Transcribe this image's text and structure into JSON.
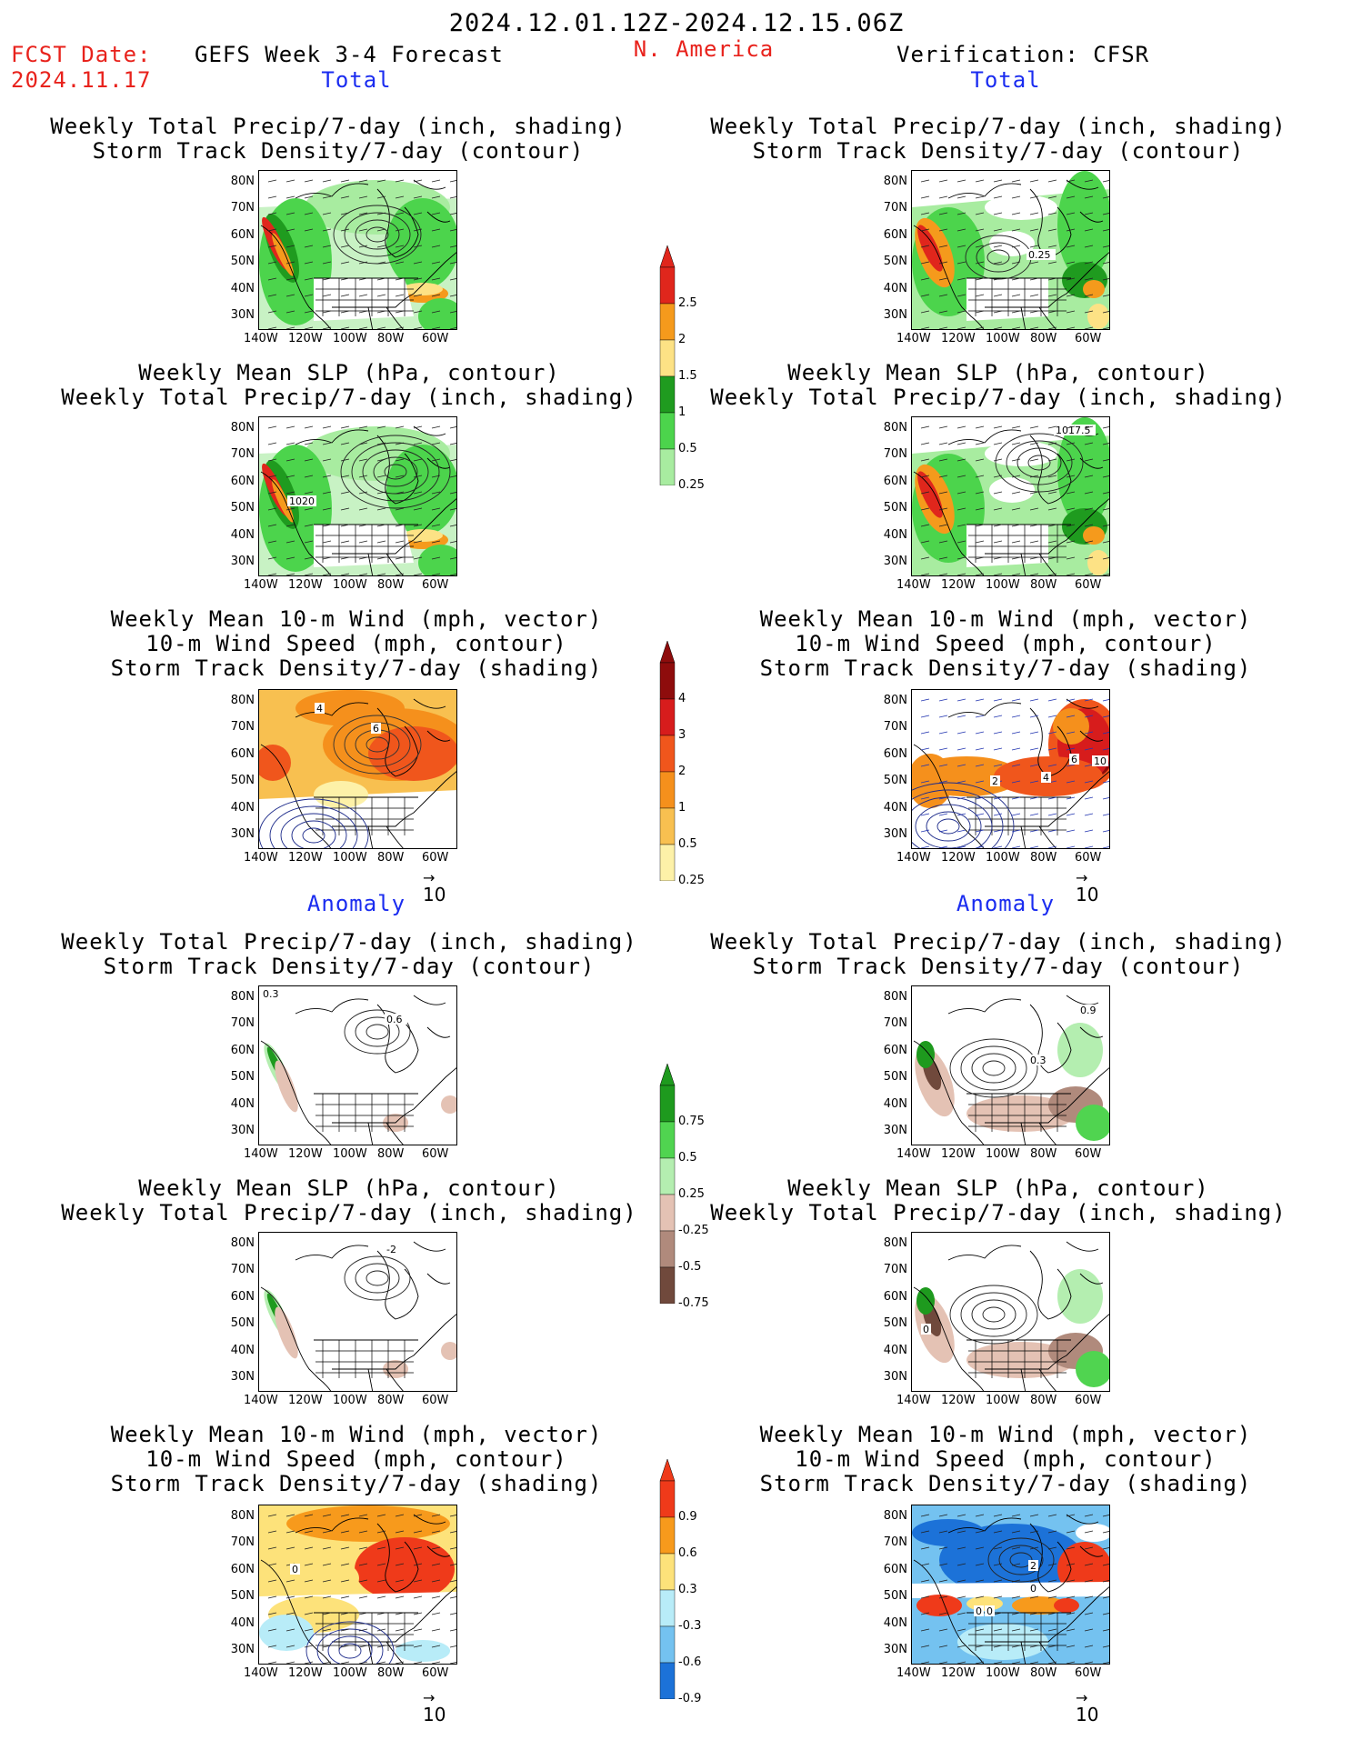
{
  "header": {
    "period": "2024.12.01.12Z-2024.12.15.06Z",
    "fcst_label": "FCST Date:",
    "fcst_date": "2024.11.17",
    "forecast_title": "GEFS Week 3-4 Forecast",
    "region": "N. America",
    "verification": "Verification: CFSR"
  },
  "sections": {
    "total": "Total",
    "anomaly": "Anomaly"
  },
  "titles": {
    "precip_storm": [
      "Weekly Total Precip/7-day (inch, shading)",
      "Storm Track Density/7-day (contour)"
    ],
    "slp_precip": [
      "Weekly Mean SLP (hPa, contour)",
      "Weekly Total Precip/7-day (inch, shading)"
    ],
    "wind_storm": [
      "Weekly Mean 10-m Wind (mph, vector)",
      "10-m Wind Speed (mph, contour)",
      "Storm Track Density/7-day (shading)"
    ]
  },
  "axes": {
    "lat": [
      "80N",
      "70N",
      "60N",
      "50N",
      "40N",
      "30N"
    ],
    "lon": [
      "140W",
      "120W",
      "100W",
      "80W",
      "60W"
    ]
  },
  "vector_ref": "10",
  "contour_labels": {
    "fc_total_precip": "",
    "an_total_precip": "0.25",
    "fc_total_slp": "1020",
    "an_total_slp": "1017.5",
    "fc_total_wind": [
      "4",
      "6"
    ],
    "an_total_wind": [
      "2",
      "4",
      "6",
      "10"
    ],
    "fc_anom_precip": [
      "0.3",
      "0.6"
    ],
    "an_anom_precip": [
      "0.9",
      "0.3"
    ],
    "fc_anom_slp": "-2",
    "an_anom_slp": "0",
    "fc_anom_wind": [
      "0"
    ],
    "an_anom_wind": [
      "2",
      "0",
      "0",
      "0"
    ]
  },
  "colorbars": {
    "precip_total": {
      "labels": [
        "2.5",
        "2",
        "1.5",
        "1",
        "0.5",
        "0.25"
      ],
      "colors": [
        "#e0261c",
        "#f59a1c",
        "#fde285",
        "#1f9b1f",
        "#4cd44c",
        "#a8eca0"
      ]
    },
    "storm_total": {
      "labels": [
        "4",
        "3",
        "2",
        "1",
        "0.5",
        "0.25"
      ],
      "colors": [
        "#8e0c0c",
        "#d71c1c",
        "#f0561c",
        "#f5901c",
        "#f8c050",
        "#fdf1a8"
      ]
    },
    "precip_anom": {
      "labels": [
        "0.75",
        "0.5",
        "0.25",
        "-0.25",
        "-0.5",
        "-0.75"
      ],
      "colors": [
        "#1e9a1e",
        "#50d450",
        "#b4eeb0",
        "#e4c2b4",
        "#b08a7c",
        "#70493c"
      ]
    },
    "storm_anom": {
      "labels": [
        "0.9",
        "0.6",
        "0.3",
        "-0.3",
        "-0.6",
        "-0.9"
      ],
      "colors": [
        "#ef3a1a",
        "#f79a1c",
        "#fde27a",
        "#b8ecf8",
        "#74c2f0",
        "#1c72d8"
      ]
    }
  }
}
